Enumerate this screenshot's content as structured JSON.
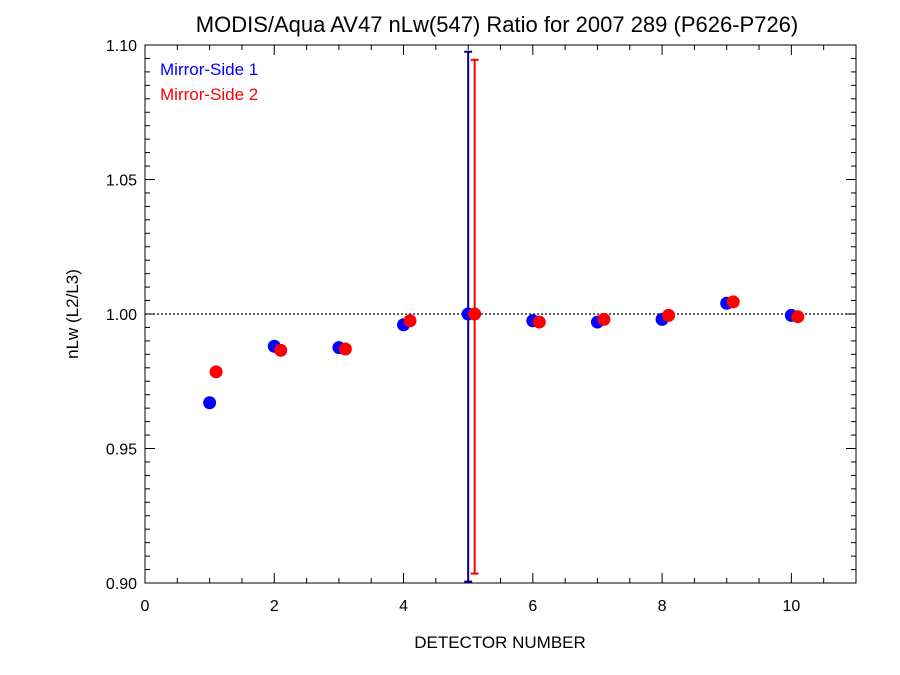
{
  "chart_data": {
    "type": "scatter",
    "title": "MODIS/Aqua AV47 nLw(547) Ratio for 2007 289 (P626-P726)",
    "xlabel": "DETECTOR NUMBER",
    "ylabel": "nLw (L2/L3)",
    "xlim": [
      0,
      11
    ],
    "ylim": [
      0.9,
      1.1
    ],
    "x_ticks": [
      0,
      2,
      4,
      6,
      8,
      10
    ],
    "x_tick_labels": [
      "0",
      "2",
      "4",
      "6",
      "8",
      "10"
    ],
    "y_ticks": [
      0.9,
      0.95,
      1.0,
      1.05,
      1.1
    ],
    "y_tick_labels": [
      "0.90",
      "0.95",
      "1.00",
      "1.05",
      "1.10"
    ],
    "reference_line": 1.0,
    "legend_position": "top-left",
    "series": [
      {
        "name": "Mirror-Side 1",
        "color": "#0000ff",
        "x": [
          1,
          2,
          3,
          4,
          5,
          6,
          7,
          8,
          9,
          10
        ],
        "y": [
          0.967,
          0.988,
          0.9875,
          0.996,
          1.0,
          0.9975,
          0.997,
          0.998,
          1.004,
          0.9995
        ]
      },
      {
        "name": "Mirror-Side 2",
        "color": "#ff0000",
        "x": [
          1.1,
          2.1,
          3.1,
          4.1,
          5.1,
          6.1,
          7.1,
          8.1,
          9.1,
          10.1
        ],
        "y": [
          0.9785,
          0.9865,
          0.987,
          0.9975,
          1.0,
          0.997,
          0.998,
          0.9995,
          1.0045,
          0.999
        ]
      }
    ],
    "error_bars": [
      {
        "series": "Mirror-Side 1",
        "color": "#00008b",
        "x": 5,
        "low": 0.9005,
        "high": 1.0975
      },
      {
        "series": "Mirror-Side 2",
        "color": "#ff0000",
        "x": 5.1,
        "low": 0.9035,
        "high": 1.0945
      }
    ]
  }
}
